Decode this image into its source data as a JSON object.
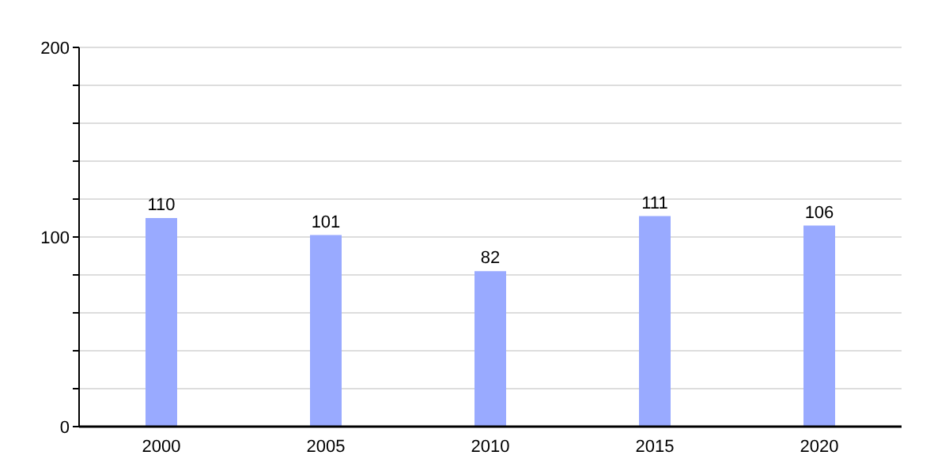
{
  "chart_data": {
    "type": "bar",
    "categories": [
      "2000",
      "2005",
      "2010",
      "2015",
      "2020"
    ],
    "values": [
      110,
      101,
      82,
      111,
      106
    ],
    "color": "#99aaff",
    "ylim": [
      0,
      200
    ],
    "yticks": [
      0,
      {
        "value": 20,
        "label": null
      },
      {
        "value": 40,
        "label": null
      },
      {
        "value": 60,
        "label": null
      },
      {
        "value": 80,
        "label": null
      },
      100,
      {
        "value": 120,
        "label": null
      },
      {
        "value": 140,
        "label": null
      },
      {
        "value": 160,
        "label": null
      },
      {
        "value": 180,
        "label": null
      },
      200
    ],
    "grid": "y",
    "data_labels": true
  }
}
